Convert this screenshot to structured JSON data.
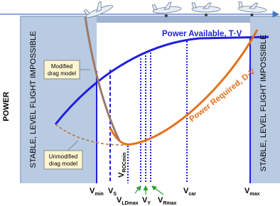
{
  "axis_label": "POWER",
  "regions": {
    "left": "STABLE, LEVEL FLIGHT IMPOSSIBLE",
    "right": "STABLE, LEVEL FLIGHT IMPOSSIBLE"
  },
  "curves": {
    "available": "Power Available, T·V",
    "required": "Power Required, D·V"
  },
  "callouts": {
    "modified": [
      "Modified",
      "drag model"
    ],
    "unmodified": [
      "Unmodified",
      "drag model"
    ]
  },
  "speeds": [
    {
      "base": "V",
      "sub": "min"
    },
    {
      "base": "V",
      "sub": "S"
    },
    {
      "base": "V",
      "sub": "ROCmin"
    },
    {
      "base": "V",
      "sub": "LDmax"
    },
    {
      "base": "V",
      "sub": "Y"
    },
    {
      "base": "V",
      "sub": "Rmax"
    },
    {
      "base": "V",
      "sub": "car"
    },
    {
      "base": "V",
      "sub": "max"
    }
  ]
}
